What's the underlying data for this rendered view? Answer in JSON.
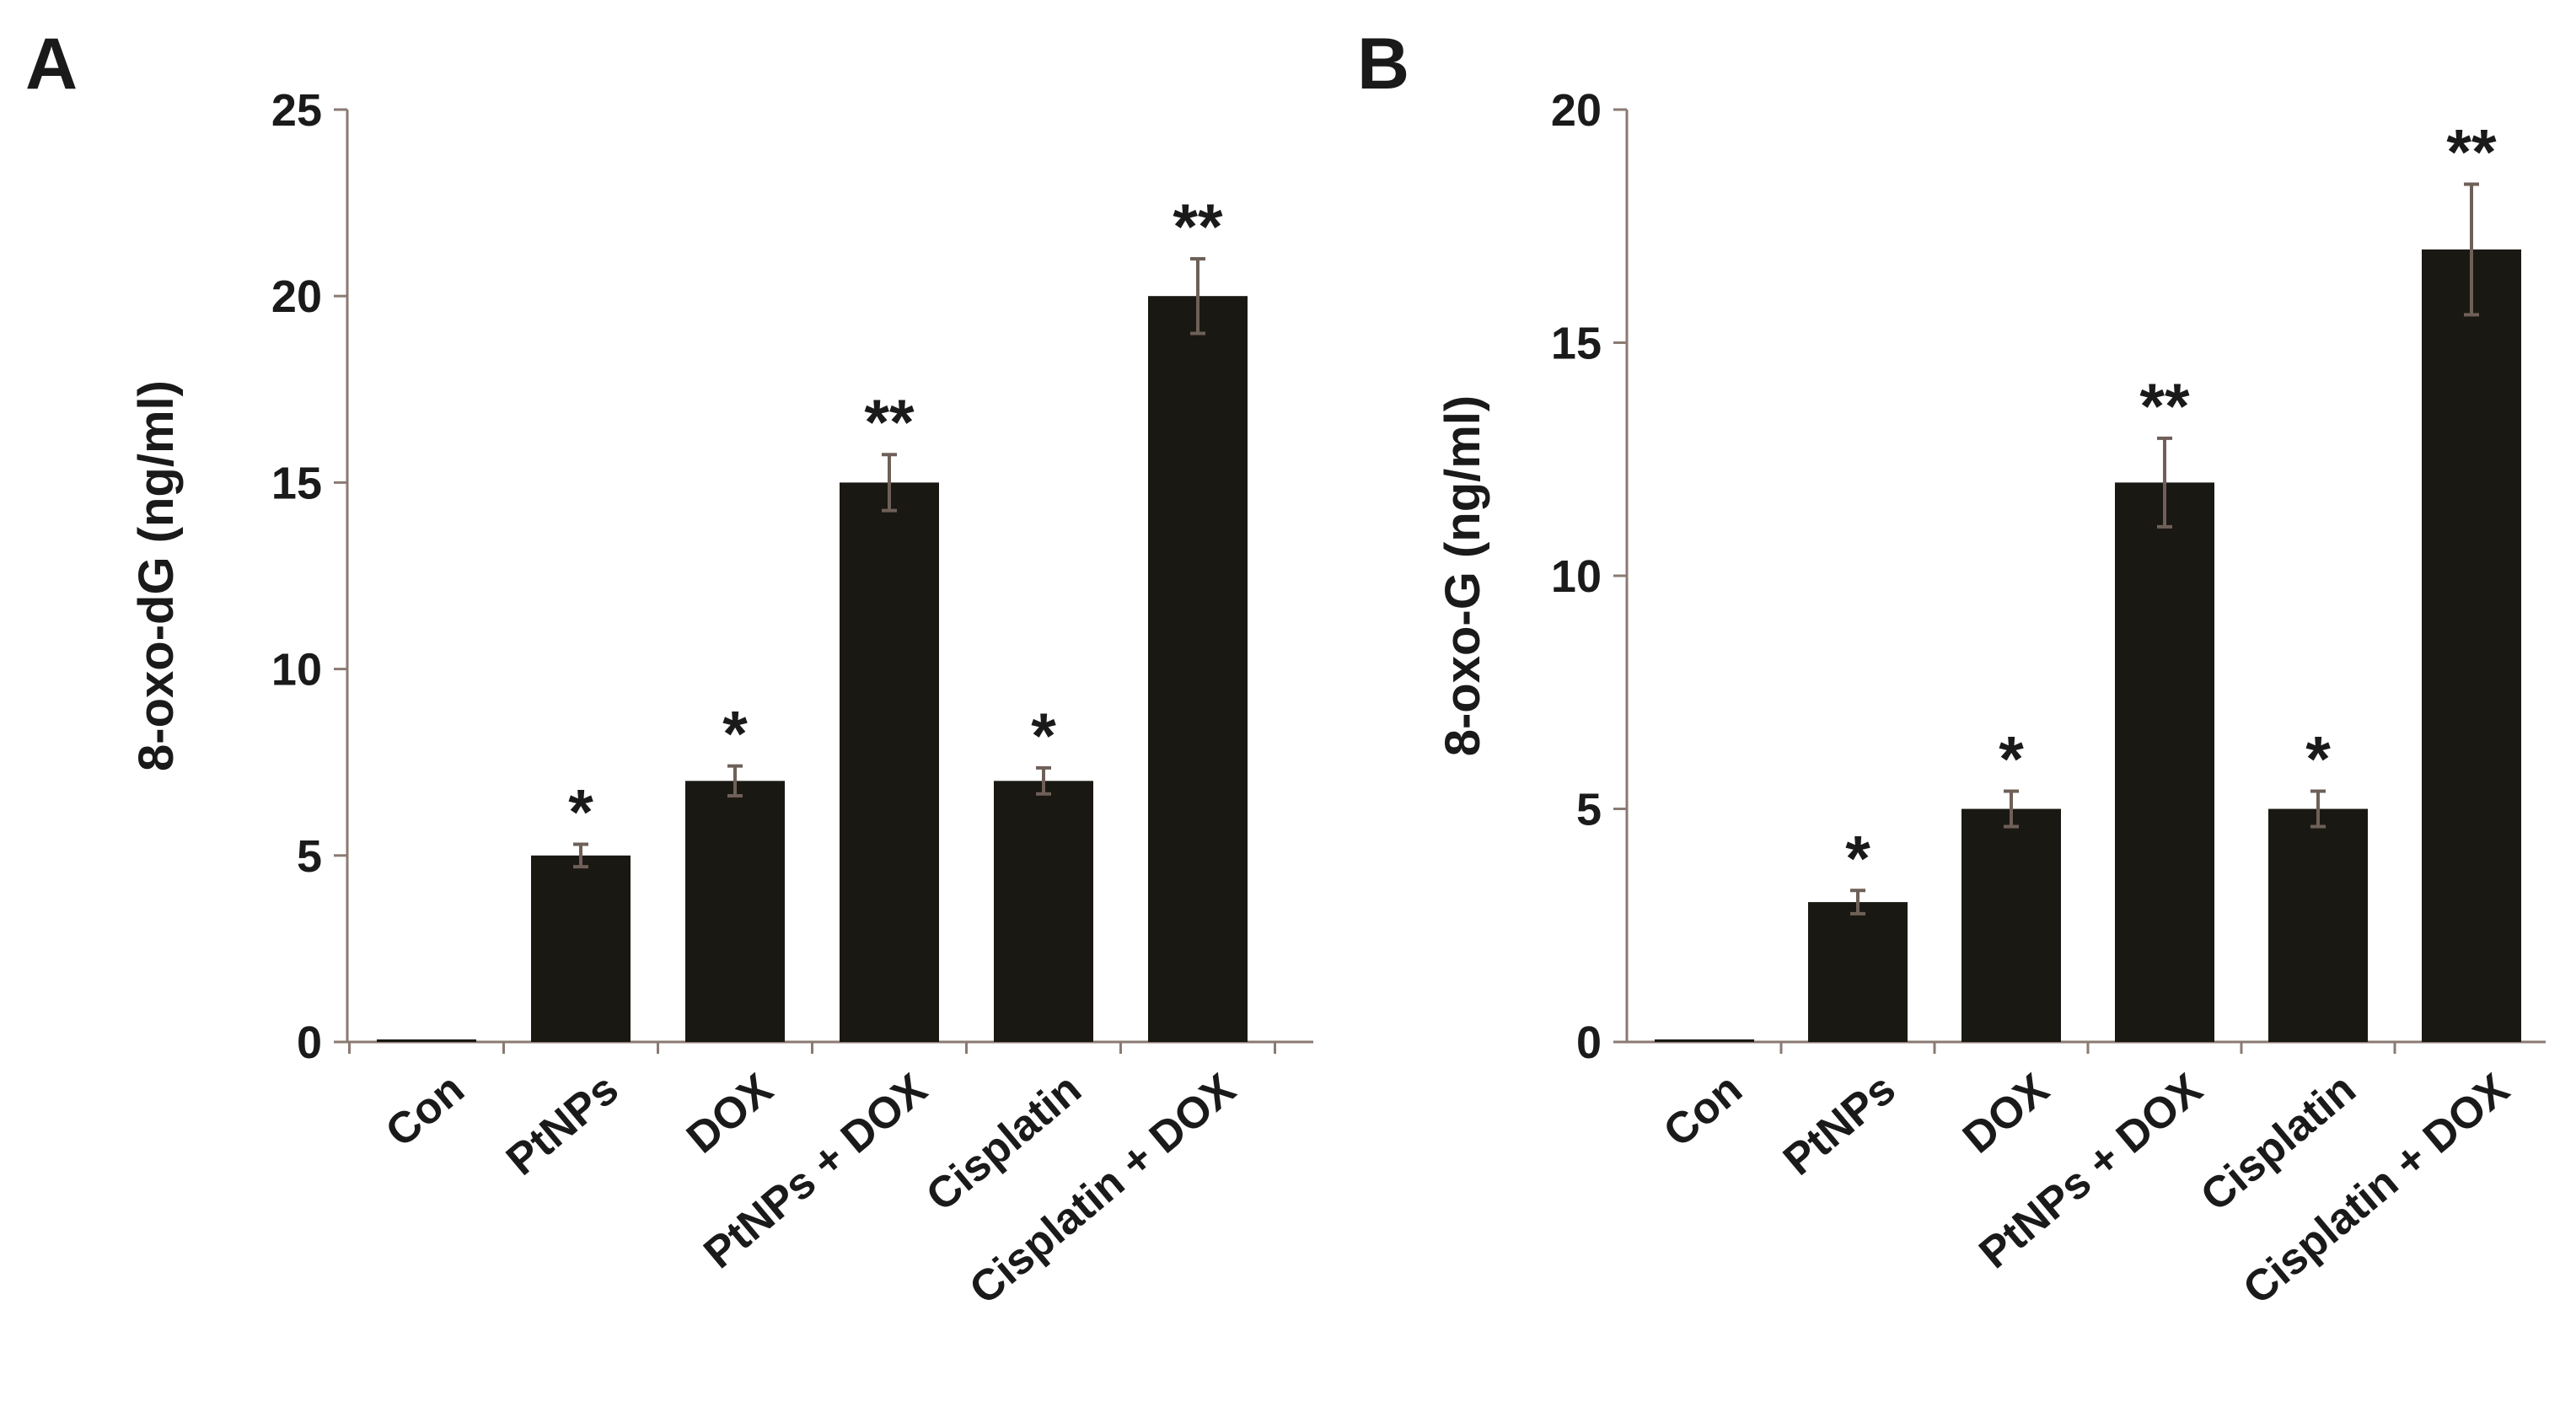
{
  "chart_data": [
    {
      "type": "bar",
      "panel": "A",
      "ylabel": "8-oxo-dG (ng/ml)",
      "xlabel": "",
      "title": "",
      "ylim": [
        0,
        25
      ],
      "yticks": [
        0,
        5,
        10,
        15,
        20,
        25
      ],
      "categories": [
        "Con",
        "PtNPs",
        "DOX",
        "PtNPs + DOX",
        "Cisplatin",
        "Cisplatin + DOX"
      ],
      "values": [
        0.05,
        5,
        7,
        15,
        7,
        20
      ],
      "errors": [
        0,
        0.3,
        0.4,
        0.75,
        0.35,
        1.0
      ],
      "significance": [
        "",
        "*",
        "*",
        "**",
        "*",
        "**"
      ],
      "bar_color": "#1a1812",
      "error_color": "#6e6058",
      "axis_color": "#8a7a72"
    },
    {
      "type": "bar",
      "panel": "B",
      "ylabel": "8-oxo-G (ng/ml)",
      "xlabel": "",
      "title": "",
      "ylim": [
        0,
        20
      ],
      "yticks": [
        0,
        5,
        10,
        15,
        20
      ],
      "categories": [
        "Con",
        "PtNPs",
        "DOX",
        "PtNPs + DOX",
        "Cisplatin",
        "Cisplatin + DOX"
      ],
      "values": [
        0.05,
        3,
        5,
        12,
        5,
        17
      ],
      "errors": [
        0,
        0.25,
        0.38,
        0.95,
        0.38,
        1.4
      ],
      "significance": [
        "",
        "*",
        "*",
        "**",
        "*",
        "**"
      ],
      "bar_color": "#1a1812",
      "error_color": "#6e6058",
      "axis_color": "#8a7a72"
    }
  ]
}
